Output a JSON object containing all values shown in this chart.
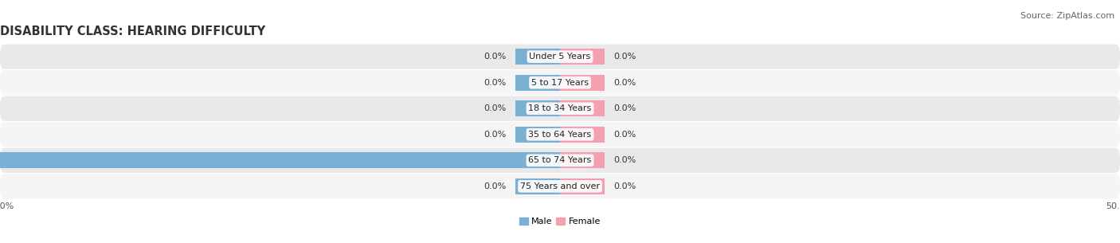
{
  "title": "DISABILITY CLASS: HEARING DIFFICULTY",
  "source": "Source: ZipAtlas.com",
  "categories": [
    "Under 5 Years",
    "5 to 17 Years",
    "18 to 34 Years",
    "35 to 64 Years",
    "65 to 74 Years",
    "75 Years and over"
  ],
  "male_values": [
    0.0,
    0.0,
    0.0,
    0.0,
    50.0,
    0.0
  ],
  "female_values": [
    0.0,
    0.0,
    0.0,
    0.0,
    0.0,
    0.0
  ],
  "male_color": "#7bafd4",
  "female_color": "#f4a0b0",
  "xlim": 50.0,
  "bar_height": 0.62,
  "title_fontsize": 10.5,
  "label_fontsize": 8,
  "tick_fontsize": 8,
  "source_fontsize": 8,
  "row_colors": [
    "#f5f5f5",
    "#e9e9e9"
  ],
  "min_bar_width": 4.0
}
